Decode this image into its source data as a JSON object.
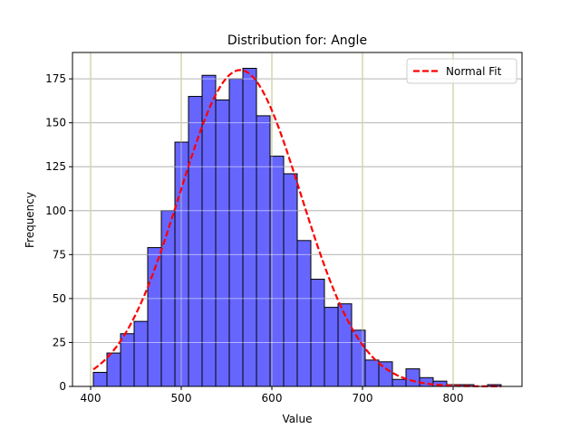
{
  "chart_data": {
    "type": "bar",
    "title": "Distribution for: Angle",
    "xlabel": "Value",
    "ylabel": "Frequency",
    "xlim": [
      380,
      876
    ],
    "ylim": [
      0,
      190
    ],
    "xticks": [
      400,
      500,
      600,
      700,
      800
    ],
    "yticks": [
      0,
      25,
      50,
      75,
      100,
      125,
      150,
      175
    ],
    "grid": true,
    "bin_start": 403,
    "bin_width": 15,
    "values": [
      8,
      19,
      30,
      37,
      79,
      100,
      139,
      165,
      177,
      163,
      175,
      181,
      154,
      131,
      121,
      83,
      61,
      45,
      47,
      32,
      15,
      14,
      4,
      10,
      5,
      3,
      1,
      1,
      0,
      1
    ],
    "bar_color": "#6666ff",
    "fit": {
      "name": "Normal Fit",
      "mean": 565,
      "std": 67,
      "peak": 180,
      "color": "#ff0000",
      "style": "dashed"
    },
    "legend_placement": "top-right"
  }
}
